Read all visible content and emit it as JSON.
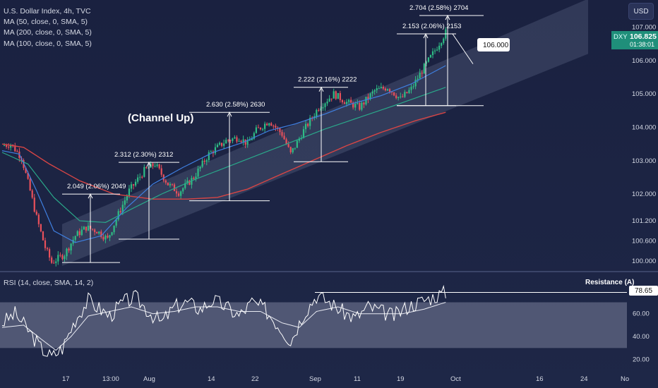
{
  "legend": {
    "title": "U.S. Dollar Index, 4h, TVC",
    "ma1": "MA (50, close, 0, SMA, 5)",
    "ma2": "MA (200, close, 0, SMA, 5)",
    "ma3": "MA (100, close, 0, SMA, 5)"
  },
  "toolbar": {
    "currency": "USD"
  },
  "price_badge": {
    "symbol": "DXY",
    "price": "106.825",
    "countdown": "01:38:01"
  },
  "rsi_legend": "RSI (14, close, SMA, 14, 2)",
  "rsi_badge": "78.65",
  "resistance_label": "Resistance (A)",
  "channel_label": "(Channel Up)",
  "target_label": "106.000",
  "colors": {
    "up": "#2ebd85",
    "down": "#e8505b",
    "ma50": "#3f7fe0",
    "ma100": "#2aa88a",
    "ma200": "#d64545",
    "channel": "#8c98bf",
    "rsi_band": "#7a809a"
  },
  "chart_data": [
    {
      "type": "candlestick",
      "symbol": "DXY",
      "timeframe": "4h",
      "y_ticks": [
        "107.000",
        "106.000",
        "105.000",
        "104.000",
        "103.000",
        "102.000",
        "101.200",
        "100.600",
        "100.000"
      ],
      "x_ticks": [
        "17",
        "13:00",
        "Aug",
        "14",
        "22",
        "Sep",
        "11",
        "19",
        "Oct",
        "16",
        "24",
        "No"
      ],
      "ylim": [
        99.8,
        107.5
      ],
      "price_path": [
        [
          0,
          103.45
        ],
        [
          4,
          103.5
        ],
        [
          9,
          103.1
        ],
        [
          13,
          102.1
        ],
        [
          16,
          101.3
        ],
        [
          20,
          100.4
        ],
        [
          23,
          99.95
        ],
        [
          29,
          100.2
        ],
        [
          34,
          100.75
        ],
        [
          39,
          101.0
        ],
        [
          44,
          100.9
        ],
        [
          49,
          100.65
        ],
        [
          54,
          101.4
        ],
        [
          59,
          102.1
        ],
        [
          66,
          102.7
        ],
        [
          71,
          102.9
        ],
        [
          77,
          102.3
        ],
        [
          82,
          102.05
        ],
        [
          89,
          102.5
        ],
        [
          96,
          103.2
        ],
        [
          104,
          103.6
        ],
        [
          110,
          103.7
        ],
        [
          114,
          103.5
        ],
        [
          118,
          103.9
        ],
        [
          124,
          104.2
        ],
        [
          130,
          103.8
        ],
        [
          134,
          103.2
        ],
        [
          140,
          103.9
        ],
        [
          147,
          104.6
        ],
        [
          154,
          105.0
        ],
        [
          160,
          104.75
        ],
        [
          166,
          104.6
        ],
        [
          173,
          105.1
        ],
        [
          179,
          105.2
        ],
        [
          185,
          104.85
        ],
        [
          190,
          105.15
        ],
        [
          195,
          105.7
        ],
        [
          200,
          106.2
        ],
        [
          206,
          106.85
        ]
      ],
      "ma50_path": [
        [
          0,
          103.3
        ],
        [
          8,
          103.2
        ],
        [
          16,
          102.1
        ],
        [
          24,
          100.9
        ],
        [
          34,
          100.55
        ],
        [
          46,
          100.75
        ],
        [
          58,
          101.6
        ],
        [
          70,
          102.3
        ],
        [
          84,
          102.8
        ],
        [
          98,
          103.25
        ],
        [
          112,
          103.55
        ],
        [
          124,
          103.9
        ],
        [
          136,
          104.1
        ],
        [
          150,
          104.4
        ],
        [
          162,
          104.7
        ],
        [
          176,
          104.95
        ],
        [
          190,
          105.3
        ],
        [
          206,
          105.85
        ]
      ],
      "ma100_path": [
        [
          0,
          103.25
        ],
        [
          12,
          102.9
        ],
        [
          24,
          101.9
        ],
        [
          36,
          101.2
        ],
        [
          48,
          101.15
        ],
        [
          60,
          101.55
        ],
        [
          74,
          102.0
        ],
        [
          90,
          102.45
        ],
        [
          106,
          102.85
        ],
        [
          120,
          103.2
        ],
        [
          134,
          103.55
        ],
        [
          150,
          103.95
        ],
        [
          166,
          104.3
        ],
        [
          182,
          104.65
        ],
        [
          206,
          105.2
        ]
      ],
      "ma200_path": [
        [
          0,
          103.5
        ],
        [
          10,
          103.4
        ],
        [
          22,
          102.9
        ],
        [
          36,
          102.4
        ],
        [
          52,
          102.0
        ],
        [
          70,
          101.85
        ],
        [
          86,
          101.85
        ],
        [
          100,
          101.9
        ],
        [
          114,
          102.15
        ],
        [
          128,
          102.55
        ],
        [
          144,
          103.0
        ],
        [
          160,
          103.45
        ],
        [
          176,
          103.85
        ],
        [
          192,
          104.2
        ],
        [
          206,
          104.45
        ]
      ],
      "rsi_path": [
        [
          0,
          52
        ],
        [
          6,
          60
        ],
        [
          12,
          46
        ],
        [
          18,
          30
        ],
        [
          23,
          22
        ],
        [
          28,
          30
        ],
        [
          34,
          55
        ],
        [
          40,
          72
        ],
        [
          44,
          66
        ],
        [
          50,
          58
        ],
        [
          56,
          70
        ],
        [
          62,
          74
        ],
        [
          68,
          62
        ],
        [
          74,
          52
        ],
        [
          80,
          66
        ],
        [
          86,
          70
        ],
        [
          92,
          64
        ],
        [
          98,
          72
        ],
        [
          104,
          66
        ],
        [
          110,
          58
        ],
        [
          116,
          70
        ],
        [
          122,
          64
        ],
        [
          130,
          46
        ],
        [
          134,
          36
        ],
        [
          140,
          60
        ],
        [
          146,
          76
        ],
        [
          152,
          70
        ],
        [
          158,
          62
        ],
        [
          164,
          56
        ],
        [
          170,
          66
        ],
        [
          176,
          62
        ],
        [
          182,
          58
        ],
        [
          188,
          66
        ],
        [
          196,
          72
        ],
        [
          206,
          78.65
        ]
      ],
      "rsi_ma_path": [
        [
          0,
          48
        ],
        [
          10,
          50
        ],
        [
          18,
          38
        ],
        [
          25,
          28
        ],
        [
          32,
          40
        ],
        [
          40,
          58
        ],
        [
          50,
          62
        ],
        [
          60,
          66
        ],
        [
          70,
          60
        ],
        [
          80,
          62
        ],
        [
          90,
          66
        ],
        [
          100,
          66
        ],
        [
          110,
          62
        ],
        [
          120,
          62
        ],
        [
          130,
          52
        ],
        [
          138,
          48
        ],
        [
          146,
          62
        ],
        [
          156,
          66
        ],
        [
          166,
          60
        ],
        [
          176,
          60
        ],
        [
          186,
          60
        ],
        [
          196,
          64
        ],
        [
          206,
          70
        ]
      ],
      "rsi_ticks": [
        "78.65",
        "60.00",
        "40.00",
        "20.00"
      ],
      "rsi_band": [
        30,
        70
      ],
      "resistance_level": 78.65,
      "measurements": [
        {
          "label": "2.049 (2.06%) 2049"
        },
        {
          "label": "2.312 (2.30%) 2312"
        },
        {
          "label": "2.630 (2.58%) 2630"
        },
        {
          "label": "2.222 (2.16%) 2222"
        },
        {
          "label": "2.153 (2.06%) 2153"
        },
        {
          "label": "2.704 (2.58%) 2704"
        }
      ]
    }
  ]
}
